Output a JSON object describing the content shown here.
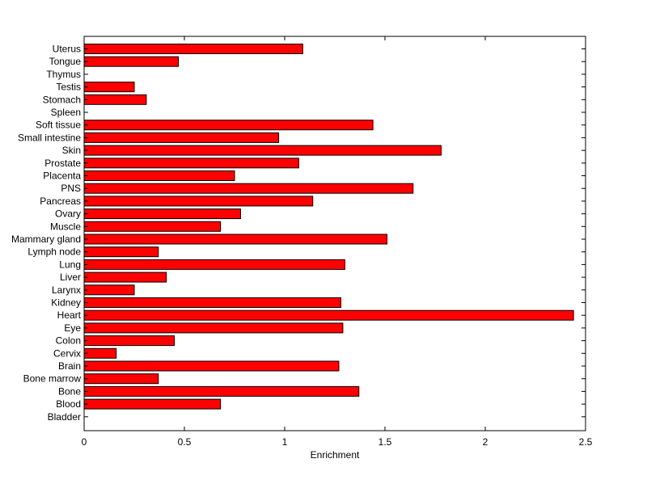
{
  "chart_data": {
    "type": "bar",
    "orientation": "horizontal",
    "title": "",
    "xlabel": "Enrichment",
    "ylabel": "",
    "xlim": [
      0,
      2.5
    ],
    "xticks": [
      0,
      0.5,
      1,
      1.5,
      2,
      2.5
    ],
    "xtick_labels": [
      "0",
      "0.5",
      "1",
      "1.5",
      "2",
      "2.5"
    ],
    "grid": false,
    "legend": "none",
    "bar_color": "#ff0000",
    "edge_color": "#000000",
    "categories": [
      "Uterus",
      "Tongue",
      "Thymus",
      "Testis",
      "Stomach",
      "Spleen",
      "Soft tissue",
      "Small intestine",
      "Skin",
      "Prostate",
      "Placenta",
      "PNS",
      "Pancreas",
      "Ovary",
      "Muscle",
      "Mammary gland",
      "Lymph node",
      "Lung",
      "Liver",
      "Larynx",
      "Kidney",
      "Heart",
      "Eye",
      "Colon",
      "Cervix",
      "Brain",
      "Bone marrow",
      "Bone",
      "Blood",
      "Bladder"
    ],
    "values": [
      1.09,
      0.47,
      0,
      0.25,
      0.31,
      0,
      1.44,
      0.97,
      1.78,
      1.07,
      0.75,
      1.64,
      1.14,
      0.78,
      0.68,
      1.51,
      0.37,
      1.3,
      0.41,
      0.25,
      1.28,
      2.44,
      1.29,
      0.45,
      0.16,
      1.27,
      0.37,
      1.37,
      0.68,
      0
    ]
  }
}
